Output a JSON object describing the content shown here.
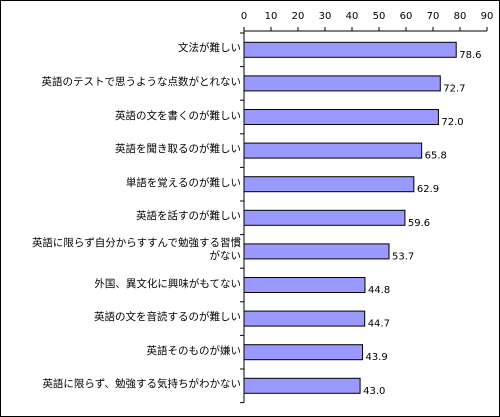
{
  "chart_data": {
    "type": "bar",
    "orientation": "horizontal",
    "categories": [
      "文法が難しい",
      "英語のテストで思うような点数がとれない",
      "英語の文を書くのが難しい",
      "英語を聞き取るのが難しい",
      "単語を覚えるのが難しい",
      "英語を話すのが難しい",
      "英語に限らず自分からすすんで勉強する習慣がない",
      "外国、異文化に興味がもてない",
      "英語の文を音読するのが難しい",
      "英語そのものが嫌い",
      "英語に限らず、勉強する気持ちがわかない"
    ],
    "category_lines": [
      [
        "文法が難しい"
      ],
      [
        "英語のテストで思うような点数がとれない"
      ],
      [
        "英語の文を書くのが難しい"
      ],
      [
        "英語を聞き取るのが難しい"
      ],
      [
        "単語を覚えるのが難しい"
      ],
      [
        "英語を話すのが難しい"
      ],
      [
        "英語に限らず自分からすすんで勉強する習慣",
        "がない"
      ],
      [
        "外国、異文化に興味がもてない"
      ],
      [
        "英語の文を音読するのが難しい"
      ],
      [
        "英語そのものが嫌い"
      ],
      [
        "英語に限らず、勉強する気持ちがわかない"
      ]
    ],
    "values": [
      78.6,
      72.7,
      72.0,
      65.8,
      62.9,
      59.6,
      53.7,
      44.8,
      44.7,
      43.9,
      43.0
    ],
    "value_labels": [
      "78.6",
      "72.7",
      "72.0",
      "65.8",
      "62.9",
      "59.6",
      "53.7",
      "44.8",
      "44.7",
      "43.9",
      "43.0"
    ],
    "xlim": [
      0,
      90
    ],
    "x_ticks": [
      0,
      10,
      20,
      30,
      40,
      50,
      60,
      70,
      80,
      90
    ],
    "title": "",
    "xlabel": "",
    "ylabel": "",
    "axis_position": "top",
    "grid": false,
    "legend": "none",
    "colors": {
      "bar_fill": "#9999ff",
      "bar_stroke": "#000000",
      "axis": "#000000"
    }
  }
}
